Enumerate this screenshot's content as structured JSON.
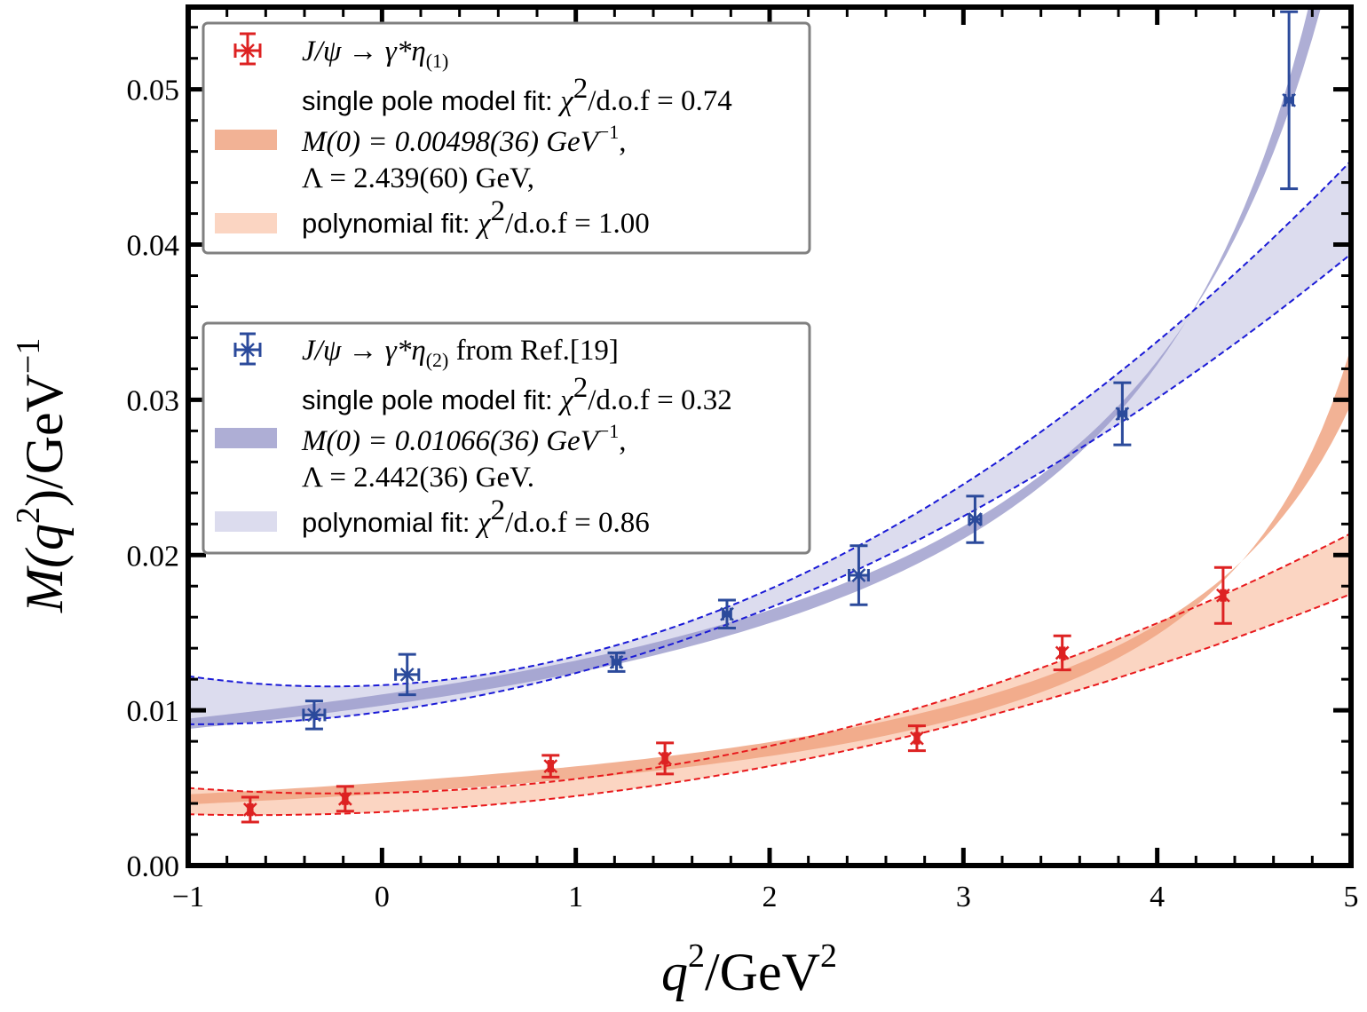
{
  "chart_data": {
    "type": "scatter",
    "xlabel": "q²/GeV²",
    "ylabel": "M(q²)/GeV⁻¹",
    "xlim": [
      -1,
      5
    ],
    "ylim": [
      0.0,
      0.0553
    ],
    "x_ticks": [
      "−1",
      "0",
      "1",
      "2",
      "3",
      "4",
      "5"
    ],
    "x_tick_values": [
      -1,
      0,
      1,
      2,
      3,
      4,
      5
    ],
    "y_ticks": [
      "0.00",
      "0.01",
      "0.02",
      "0.03",
      "0.04",
      "0.05"
    ],
    "y_tick_values": [
      0.0,
      0.01,
      0.02,
      0.03,
      0.04,
      0.05
    ],
    "grid": false,
    "series": [
      {
        "name": "J/ψ → γ*η(1)",
        "color": "#dd2222",
        "points": [
          {
            "x": -0.68,
            "y": 0.0036,
            "yerr": 0.0008,
            "xerr": 0.01
          },
          {
            "x": -0.19,
            "y": 0.0043,
            "yerr": 0.0008,
            "xerr": 0.01
          },
          {
            "x": 0.87,
            "y": 0.0064,
            "yerr": 0.0007,
            "xerr": 0.01
          },
          {
            "x": 1.46,
            "y": 0.0069,
            "yerr": 0.001,
            "xerr": 0.01
          },
          {
            "x": 2.76,
            "y": 0.0082,
            "yerr": 0.0008,
            "xerr": 0.01
          },
          {
            "x": 3.51,
            "y": 0.0137,
            "yerr": 0.0011,
            "xerr": 0.01
          },
          {
            "x": 4.34,
            "y": 0.0174,
            "yerr": 0.0018,
            "xerr": 0.01
          }
        ],
        "pole_fit": {
          "M0": 0.00498,
          "M0_err": 0.00036,
          "Lambda": 2.439,
          "Lambda_err": 0.06,
          "color": "#f0a582",
          "opacity": 0.85
        },
        "poly_fit": {
          "color": "#fbd5c2",
          "line_color": "#e8191c",
          "upper": [
            [
              -1,
              0.005
            ],
            [
              2,
              0.0077
            ],
            [
              5,
              0.0214
            ]
          ],
          "lower": [
            [
              -1,
              0.0033
            ],
            [
              2,
              0.0064
            ],
            [
              5,
              0.0175
            ]
          ]
        }
      },
      {
        "name": "J/ψ → γ*η(2) from Ref.[19]",
        "color": "#2b4a9b",
        "points": [
          {
            "x": -0.35,
            "y": 0.0097,
            "yerr": 0.0009,
            "xerr": 0.055
          },
          {
            "x": 0.13,
            "y": 0.0123,
            "yerr": 0.0013,
            "xerr": 0.06
          },
          {
            "x": 1.21,
            "y": 0.0131,
            "yerr": 0.0006,
            "xerr": 0.02
          },
          {
            "x": 1.78,
            "y": 0.0162,
            "yerr": 0.0009,
            "xerr": 0.02
          },
          {
            "x": 2.46,
            "y": 0.0187,
            "yerr": 0.0019,
            "xerr": 0.05
          },
          {
            "x": 3.06,
            "y": 0.0223,
            "yerr": 0.0015,
            "xerr": 0.03
          },
          {
            "x": 3.82,
            "y": 0.0291,
            "yerr": 0.002,
            "xerr": 0.02
          },
          {
            "x": 4.68,
            "y": 0.0493,
            "yerr": 0.0057,
            "xerr": 0.02
          }
        ],
        "pole_fit": {
          "M0": 0.01066,
          "M0_err": 0.00036,
          "Lambda": 2.442,
          "Lambda_err": 0.036,
          "color": "#9a9acb",
          "opacity": 0.8
        },
        "poly_fit": {
          "color": "#dcdcee",
          "line_color": "#1a1ad6",
          "upper": [
            [
              -1,
              0.0122
            ],
            [
              2,
              0.0178
            ],
            [
              5,
              0.0454
            ]
          ],
          "lower": [
            [
              -1,
              0.0091
            ],
            [
              2,
              0.0166
            ],
            [
              5,
              0.0394
            ]
          ]
        }
      }
    ]
  },
  "legend1": {
    "marker_label": "J/ψ → γ*η",
    "marker_sub": "(1)",
    "pole_line1_sans": "single pole model fit: ",
    "pole_line1_math": "χ",
    "pole_line1_sup": "2",
    "pole_line1_tail": "/d.o.f = 0.74",
    "pole_line2": "M(0) = 0.00498(36) GeV",
    "pole_line2_sup": "−1",
    "pole_line2_tail": ",",
    "pole_line3": "Λ = 2.439(60) GeV,",
    "poly_sans": "polynomial fit: ",
    "poly_math": "χ",
    "poly_sup": "2",
    "poly_tail": "/d.o.f = 1.00"
  },
  "legend2": {
    "marker_label": "J/ψ → γ*η",
    "marker_sub": "(2)",
    "marker_tail": " from Ref.[19]",
    "pole_line1_sans": "single pole model fit: ",
    "pole_line1_math": "χ",
    "pole_line1_sup": "2",
    "pole_line1_tail": "/d.o.f = 0.32",
    "pole_line2": "M(0) = 0.01066(36) GeV",
    "pole_line2_sup": "−1",
    "pole_line2_tail": ",",
    "pole_line3": "Λ = 2.442(36) GeV.",
    "poly_sans": "polynomial fit: ",
    "poly_math": "χ",
    "poly_sup": "2",
    "poly_tail": "/d.o.f = 0.86"
  },
  "axis_titles": {
    "x_main": "q",
    "x_sup": "2",
    "x_tail": "/GeV",
    "x_sup2": "2",
    "y_main": "M(q",
    "y_sup": "2",
    "y_mid": ")/GeV",
    "y_sup2": "−1"
  }
}
